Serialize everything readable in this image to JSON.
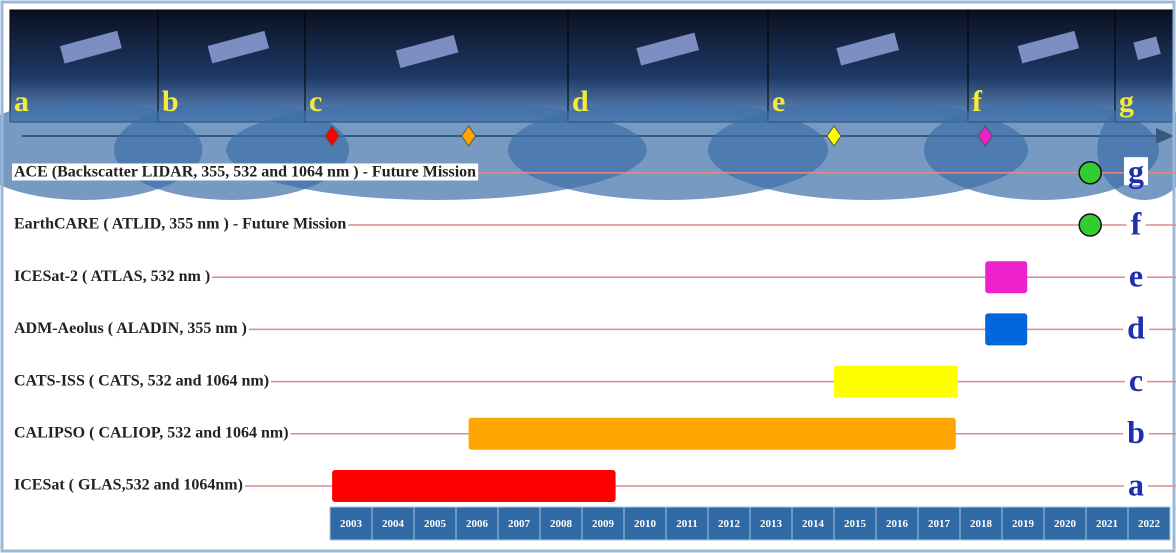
{
  "chart_data": {
    "type": "timeline",
    "xlim": [
      2003,
      2023
    ],
    "xticks": [
      2003,
      2004,
      2005,
      2006,
      2007,
      2008,
      2009,
      2010,
      2011,
      2012,
      2013,
      2014,
      2015,
      2016,
      2017,
      2018,
      2019,
      2020,
      2021,
      2022
    ],
    "missions": [
      {
        "name": "ICESat ( GLAS,532 and 1064nm)",
        "letter": "a",
        "color": "#ff0000",
        "start": 2003.05,
        "end": 2009.8,
        "shape": "bar"
      },
      {
        "name": "CALIPSO ( CALIOP, 532 and 1064 nm)",
        "letter": "b",
        "color": "#ffa500",
        "start": 2006.3,
        "end": 2017.9,
        "shape": "bar"
      },
      {
        "name": "CATS-ISS ( CATS, 532 and 1064 nm)",
        "letter": "c",
        "color": "#ffff00",
        "start": 2015.0,
        "end": 2017.95,
        "shape": "bar"
      },
      {
        "name": "ADM-Aeolus ( ALADIN, 355 nm )",
        "letter": "d",
        "color": "#0066dd",
        "start": 2018.6,
        "end": 2019.6,
        "shape": "bar"
      },
      {
        "name": "ICESat-2 ( ATLAS, 532 nm )",
        "letter": "e",
        "color": "#ee22cc",
        "start": 2018.6,
        "end": 2019.6,
        "shape": "bar"
      },
      {
        "name": "EarthCARE ( ATLID, 355 nm ) - Future Mission",
        "letter": "f",
        "color": "#33cc33",
        "start": 2021.1,
        "shape": "circle"
      },
      {
        "name": "ACE (Backscatter LIDAR, 355, 532 and 1064 nm ) - Future Mission",
        "letter": "g",
        "color": "#33cc33",
        "start": 2021.1,
        "shape": "circle"
      }
    ]
  }
}
